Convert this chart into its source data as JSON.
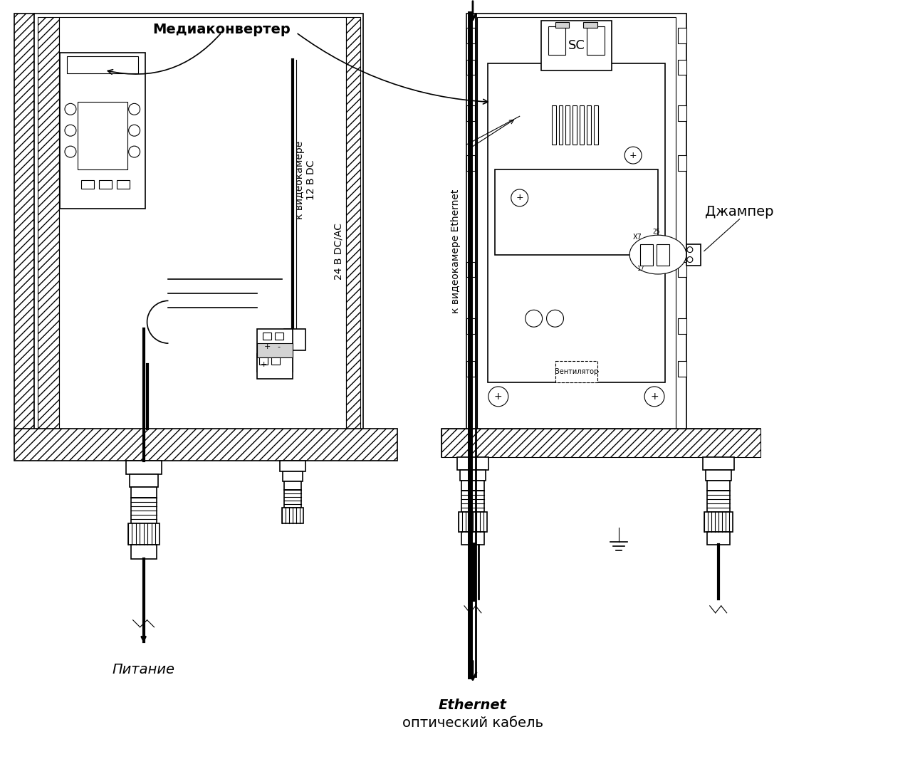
{
  "title": "",
  "bg_color": "#ffffff",
  "line_color": "#000000",
  "hatch_color": "#000000",
  "labels": {
    "mediaconverter": "Медиаконвертер",
    "to_camera_12v": "к видеокамере\n12 В DC",
    "to_camera_24v": "24 В DC/AC",
    "to_camera_ethernet": "к видеокамере Ethernet",
    "power": "Питание",
    "ethernet_optical": "Ethernet\nоптический кабель",
    "jumper": "Джампер",
    "sc": "SC",
    "ventilator": "Вентилятор"
  },
  "font_sizes": {
    "main_label": 14,
    "small_label": 10,
    "sc_label": 13
  }
}
